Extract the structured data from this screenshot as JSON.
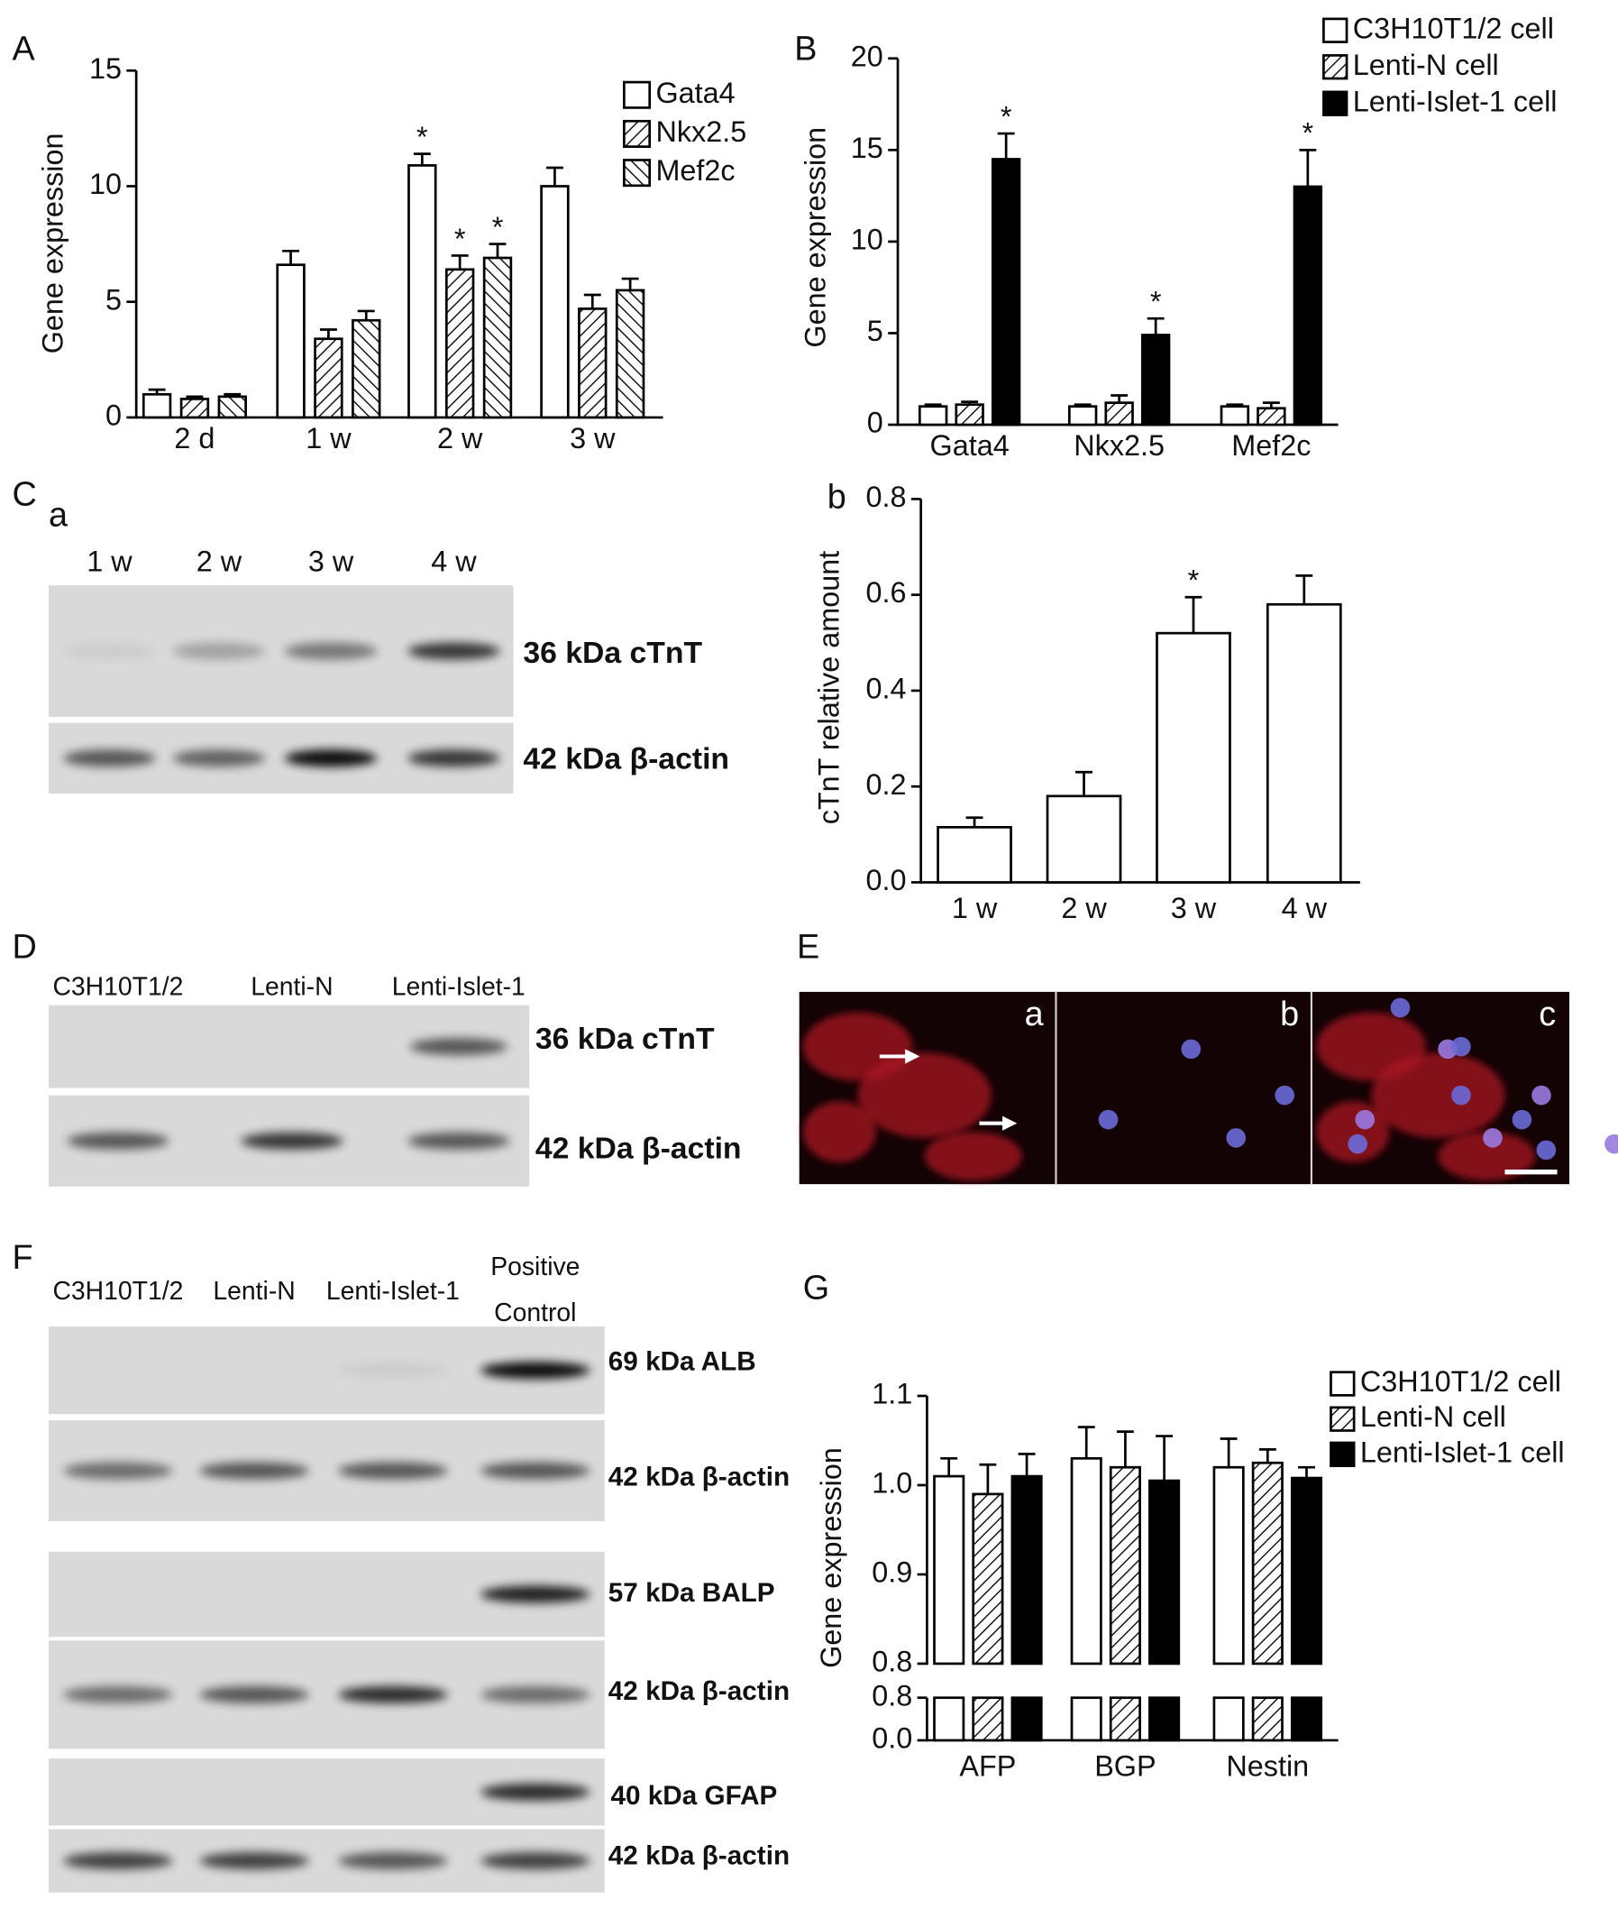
{
  "chart_data": [
    {
      "type": "bar",
      "panel": "A",
      "y_label": "Gene expression",
      "categories": [
        "2 d",
        "1 w",
        "2 w",
        "3 w"
      ],
      "series": [
        {
          "name": "Gata4",
          "color": "#ffffff",
          "values": [
            1.0,
            6.6,
            10.9,
            10.0
          ],
          "errors": [
            0.2,
            0.6,
            0.5,
            0.8
          ],
          "significance": [
            null,
            null,
            "*",
            null
          ]
        },
        {
          "name": "Nkx2.5",
          "color": "#ffffff",
          "hatch": "/",
          "values": [
            0.8,
            3.4,
            6.4,
            4.7
          ],
          "errors": [
            0.1,
            0.4,
            0.6,
            0.6
          ],
          "significance": [
            null,
            null,
            "*",
            null
          ]
        },
        {
          "name": "Mef2c",
          "color": "#ffffff",
          "hatch": "\\",
          "values": [
            0.9,
            4.2,
            6.9,
            5.5
          ],
          "errors": [
            0.1,
            0.4,
            0.6,
            0.5
          ],
          "significance": [
            null,
            null,
            "*",
            null
          ]
        }
      ],
      "ylim": [
        0,
        15
      ],
      "yticks": [
        0,
        5,
        10,
        15
      ]
    },
    {
      "type": "bar",
      "panel": "B",
      "y_label": "Gene expression",
      "categories": [
        "Gata4",
        "Nkx2.5",
        "Mef2c"
      ],
      "series": [
        {
          "name": "C3H10T1/2 cell",
          "color": "#ffffff",
          "values": [
            1.0,
            1.0,
            1.0
          ],
          "errors": [
            0.1,
            0.1,
            0.1
          ],
          "significance": [
            null,
            null,
            null
          ]
        },
        {
          "name": "Lenti-N cell",
          "color": "#ffffff",
          "hatch": "/",
          "values": [
            1.1,
            1.2,
            0.9
          ],
          "errors": [
            0.15,
            0.4,
            0.3
          ],
          "significance": [
            null,
            null,
            null
          ]
        },
        {
          "name": "Lenti-Islet-1 cell",
          "color": "#000000",
          "values": [
            14.5,
            4.9,
            13.0
          ],
          "errors": [
            1.4,
            0.9,
            2.0
          ],
          "significance": [
            "*",
            "*",
            "*"
          ]
        }
      ],
      "ylim": [
        0,
        20
      ],
      "yticks": [
        0,
        5,
        10,
        15,
        20
      ]
    },
    {
      "type": "bar",
      "panel": "b",
      "y_label": "cTnT relative amount",
      "categories": [
        "1 w",
        "2 w",
        "3 w",
        "4 w"
      ],
      "color": "#ffffff",
      "values": [
        0.115,
        0.18,
        0.52,
        0.58
      ],
      "errors": [
        0.02,
        0.05,
        0.075,
        0.06
      ],
      "significance": [
        null,
        null,
        "*",
        null
      ],
      "ylim": [
        0,
        0.8
      ],
      "yticks": [
        {
          "value": 0,
          "label": "0.0"
        },
        0.2,
        0.4,
        0.6,
        0.8
      ]
    },
    {
      "type": "broken-bar",
      "panel": "G",
      "y_label": "Gene expression",
      "categories": [
        "AFP",
        "BGP",
        "Nestin"
      ],
      "series": [
        {
          "name": "C3H10T1/2 cell",
          "color": "#ffffff",
          "values": [
            1.01,
            1.03,
            1.02
          ],
          "errors": [
            0.02,
            0.035,
            0.032
          ]
        },
        {
          "name": "Lenti-N cell",
          "color": "#ffffff",
          "hatch": "/",
          "values": [
            0.99,
            1.02,
            1.025
          ],
          "errors": [
            0.033,
            0.04,
            0.015
          ]
        },
        {
          "name": "Lenti-Islet-1 cell",
          "color": "#000000",
          "values": [
            1.01,
            1.005,
            1.008
          ],
          "errors": [
            0.025,
            0.05,
            0.012
          ]
        }
      ],
      "ylim": [
        0.8,
        1.1
      ],
      "yticks": [
        0.8,
        0.9,
        {
          "value": 1.0,
          "label": "1.0"
        },
        1.1
      ],
      "ylim_lower": [
        0,
        0.8
      ],
      "yticks_lower": [
        {
          "value": 0,
          "label": "0.0"
        },
        0.8
      ]
    }
  ],
  "figure": {
    "panel_C": {
      "label": "C",
      "sub_label": "a",
      "lanes": [
        "1 w",
        "2 w",
        "3 w",
        "4 w"
      ],
      "bands": [
        "36 kDa cTnT",
        "42 kDa β-actin"
      ]
    },
    "panel_D": {
      "label": "D",
      "lanes": [
        "C3H10T1/2",
        "Lenti-N",
        "Lenti-Islet-1"
      ],
      "bands": [
        "36 kDa cTnT",
        "42 kDa β-actin"
      ]
    },
    "panel_E": {
      "label": "E",
      "sub_panels": [
        "a",
        "b",
        "c"
      ]
    },
    "panel_F": {
      "label": "F",
      "lanes": [
        "C3H10T1/2",
        "Lenti-N",
        "Lenti-Islet-1"
      ],
      "last_lane": [
        "Positive",
        "Control"
      ],
      "bands": [
        "69 kDa ALB",
        "42 kDa β-actin",
        "57 kDa BALP",
        "42 kDa β-actin",
        "40 kDa GFAP",
        "42 kDa β-actin"
      ]
    }
  }
}
